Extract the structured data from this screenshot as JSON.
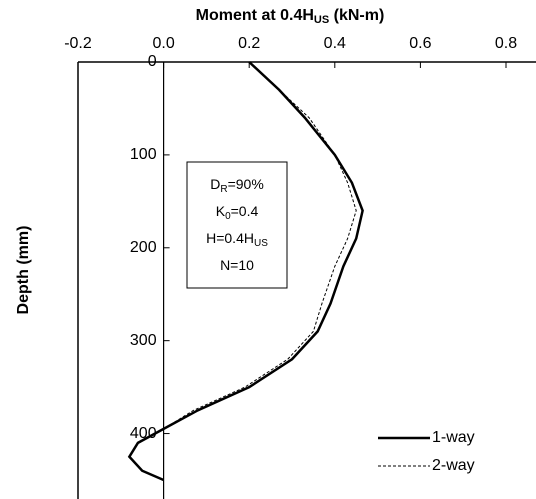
{
  "chart_data": {
    "type": "line",
    "title": {
      "text": "Moment at 0.4H",
      "sub": "US",
      "rest": " (kN-m)"
    },
    "ylabel": "Depth (mm)",
    "y": [
      0,
      30,
      60,
      100,
      130,
      160,
      190,
      220,
      260,
      290,
      320,
      350,
      375,
      395,
      410,
      425,
      440,
      450
    ],
    "series": [
      {
        "name": "1-way",
        "color": "#000000",
        "dash": false,
        "values": [
          0.2,
          0.27,
          0.33,
          0.4,
          0.44,
          0.465,
          0.45,
          0.42,
          0.39,
          0.36,
          0.3,
          0.2,
          0.08,
          0.0,
          -0.06,
          -0.08,
          -0.05,
          0.0
        ]
      },
      {
        "name": "2-way",
        "color": "#000000",
        "dash": true,
        "values": [
          0.2,
          0.27,
          0.34,
          0.4,
          0.43,
          0.45,
          0.43,
          0.4,
          0.37,
          0.35,
          0.29,
          0.19,
          0.07,
          0.0,
          -0.06,
          -0.08,
          -0.05,
          0.0
        ]
      }
    ],
    "xlim": [
      -0.2,
      0.8
    ],
    "xticks": [
      -0.2,
      {
        "value": 0,
        "label": "0.0"
      },
      0.2,
      0.4,
      0.6,
      0.8
    ],
    "ylim": [
      0,
      450
    ],
    "yticks": [
      0,
      100,
      200,
      300,
      400
    ],
    "y_inverted": true,
    "x_axis_position": "top",
    "grid": false,
    "legend": "lower right",
    "annotations": [
      {
        "text": "D",
        "sub": "R",
        "rest": "=90%"
      },
      {
        "text": "K",
        "sub": "0",
        "rest": "=0.4"
      },
      {
        "text": "H=0.4H",
        "sub": "US",
        "rest": ""
      },
      {
        "text": "N=10",
        "sub": "",
        "rest": ""
      }
    ]
  }
}
